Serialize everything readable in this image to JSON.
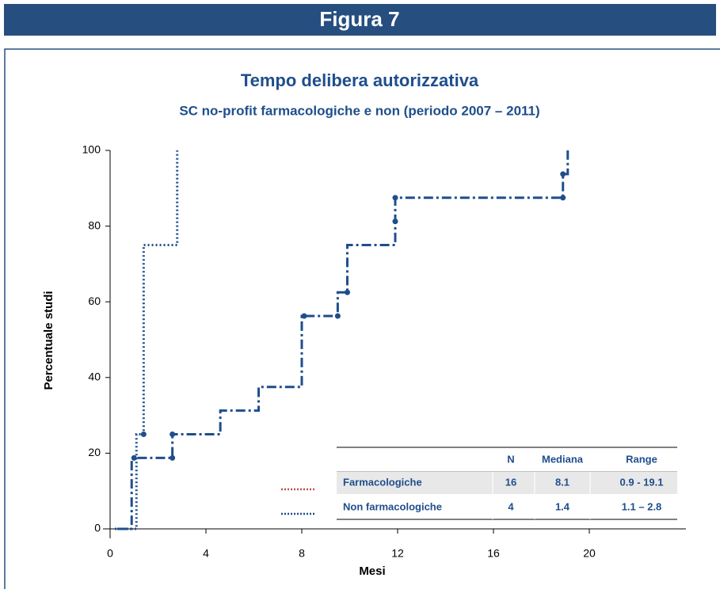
{
  "header": {
    "title": "Figura 7"
  },
  "chart_data": {
    "type": "step",
    "title": "Tempo delibera autorizzativa",
    "subtitle": "SC no-profit farmacologiche e non (periodo 2007 – 2011)",
    "x_label": "Mesi",
    "y_label": "Percentuale  studi",
    "xlim": [
      0,
      24
    ],
    "ylim": [
      0,
      100
    ],
    "xticks": [
      0,
      4,
      8,
      12,
      16,
      20
    ],
    "yticks": [
      0,
      20,
      40,
      60,
      80,
      100
    ],
    "series": [
      {
        "name": "Farmacologiche",
        "color": "#1f4e8c",
        "legend_color": "#c0504d",
        "style": "dashdot",
        "x": [
          0.3,
          0.9,
          2.6,
          4.6,
          6.2,
          8.0,
          9.5,
          9.9,
          11.9,
          18.9,
          19.1
        ],
        "values": [
          0,
          18.75,
          25,
          31.25,
          37.5,
          56.25,
          62.5,
          75,
          87.5,
          93.75,
          100
        ],
        "markers_x": [
          1.0,
          1.4,
          2.6,
          2.6,
          8.1,
          9.5,
          9.9,
          11.9,
          11.9,
          18.9,
          18.9
        ],
        "markers_y": [
          18.75,
          25,
          18.75,
          25,
          56.25,
          56.25,
          62.5,
          81.25,
          87.5,
          87.5,
          93.75
        ],
        "n": 16,
        "median": 8.1,
        "range": "0.9 - 19.1"
      },
      {
        "name": "Non farmacologiche",
        "color": "#1f4e8c",
        "legend_color": "#1f4e8c",
        "style": "dotted",
        "x": [
          0.2,
          1.1,
          1.4,
          2.8
        ],
        "values": [
          0,
          25,
          75,
          100
        ],
        "n": 4,
        "median": 1.4,
        "range": "1.1 – 2.8"
      }
    ],
    "table_header": [
      "N",
      "Mediana",
      "Range"
    ]
  }
}
